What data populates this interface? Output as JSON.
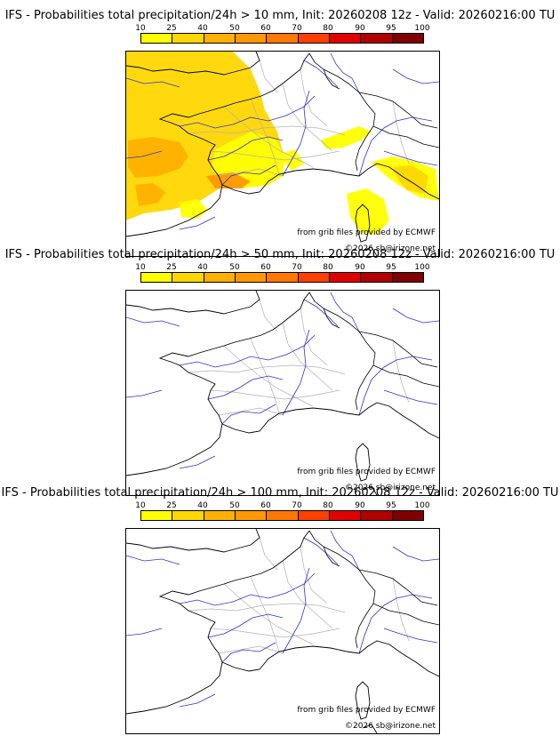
{
  "colorbar_ticks": [
    "10",
    "25",
    "40",
    "50",
    "60",
    "70",
    "80",
    "90",
    "95",
    "100"
  ],
  "colorbar_colors": [
    "#ffff00",
    "#ffd700",
    "#ffb000",
    "#ff9800",
    "#ff7800",
    "#ff4000",
    "#e00000",
    "#b00000",
    "#800000"
  ],
  "panels": [
    {
      "title": "IFS - Probabilities total precipitation/24h > 10 mm, Init: 20260208 12z - Valid: 20260216:00 TU",
      "credit_source": "from grib files provided by ECMWF",
      "credit_copyright": "©2026 sb@irizone.net",
      "has_precip_fill": true
    },
    {
      "title": "IFS - Probabilities total precipitation/24h > 50 mm, Init: 20260208 12z - Valid: 20260216:00 TU",
      "credit_source": "from grib files provided by ECMWF",
      "credit_copyright": "©2026 sb@irizone.net",
      "has_precip_fill": false
    },
    {
      "title": "IFS - Probabilities total precipitation/24h > 100 mm, Init: 20260208 12z - Valid: 20260216:00 TU",
      "credit_source": "from grib files provided by ECMWF",
      "credit_copyright": "©2026 sb@irizone.net",
      "has_precip_fill": false
    }
  ]
}
